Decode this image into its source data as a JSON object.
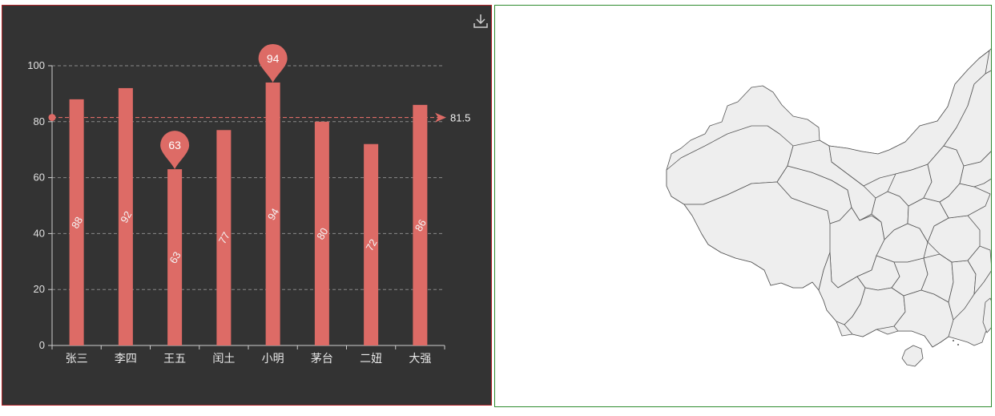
{
  "chart_data": {
    "type": "bar",
    "categories": [
      "张三",
      "李四",
      "王五",
      "闰土",
      "小明",
      "茅台",
      "二妞",
      "大强"
    ],
    "values": [
      88,
      92,
      63,
      77,
      94,
      80,
      72,
      86
    ],
    "ylim": [
      0,
      100
    ],
    "yticks": [
      0,
      20,
      40,
      60,
      80,
      100
    ],
    "grid": true,
    "bar_color": "#dd6b66",
    "mark_points": [
      {
        "label": "63",
        "category": "王五",
        "value": 63
      },
      {
        "label": "94",
        "category": "小明",
        "value": 94
      }
    ],
    "mark_line": {
      "label": "81.5",
      "value": 81.5
    }
  },
  "toolbar": {
    "download_icon": "download-icon"
  },
  "map": {
    "region": "China",
    "fill": "#eeeeee",
    "stroke": "#555555"
  }
}
